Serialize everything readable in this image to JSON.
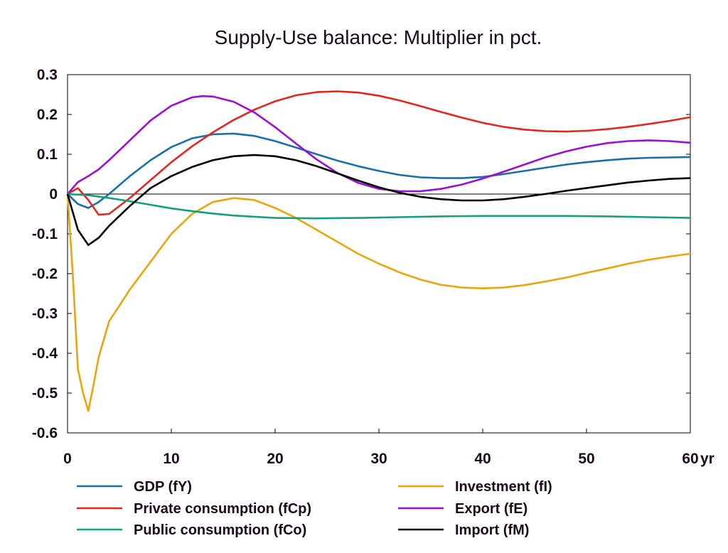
{
  "chart_data": {
    "type": "line",
    "title": "Supply-Use balance: Multiplier in pct.",
    "xlabel": "",
    "ylabel": "",
    "x_unit_label": "yr",
    "xlim": [
      0,
      60
    ],
    "ylim": [
      -0.6,
      0.3
    ],
    "x_ticks": [
      0,
      10,
      20,
      30,
      40,
      50,
      60
    ],
    "x_tick_labels": [
      "0",
      "10",
      "20",
      "30",
      "40",
      "50",
      "60"
    ],
    "y_ticks": [
      0.3,
      0.2,
      0.1,
      0,
      -0.1,
      -0.2,
      -0.3,
      -0.4,
      -0.5,
      -0.6
    ],
    "y_tick_labels": [
      "0.3",
      "0.2",
      "0.1",
      "0",
      "-0.1",
      "-0.2",
      "-0.3",
      "-0.4",
      "-0.5",
      "-0.6"
    ],
    "grid": false,
    "zero_line": true,
    "legend_position": "bottom",
    "series": [
      {
        "name": "GDP (fY)",
        "color": "#1a6fa8",
        "x": [
          0,
          1,
          2,
          3,
          4,
          6,
          8,
          10,
          12,
          14,
          16,
          18,
          20,
          22,
          24,
          26,
          28,
          30,
          32,
          34,
          36,
          38,
          40,
          42,
          44,
          46,
          48,
          50,
          52,
          54,
          56,
          58,
          60
        ],
        "y": [
          0,
          -0.025,
          -0.035,
          -0.02,
          0.0,
          0.045,
          0.085,
          0.118,
          0.14,
          0.15,
          0.152,
          0.146,
          0.133,
          0.117,
          0.1,
          0.084,
          0.07,
          0.058,
          0.048,
          0.042,
          0.04,
          0.04,
          0.043,
          0.05,
          0.058,
          0.066,
          0.074,
          0.08,
          0.085,
          0.089,
          0.091,
          0.092,
          0.093
        ]
      },
      {
        "name": "Investment (fI)",
        "color": "#e8a50f",
        "x": [
          0,
          0.5,
          1,
          1.5,
          2,
          2.5,
          3,
          4,
          6,
          8,
          10,
          12,
          14,
          16,
          18,
          20,
          22,
          24,
          26,
          28,
          30,
          32,
          34,
          36,
          38,
          40,
          42,
          44,
          46,
          48,
          50,
          52,
          54,
          56,
          58,
          60
        ],
        "y": [
          0,
          -0.2,
          -0.44,
          -0.5,
          -0.545,
          -0.48,
          -0.41,
          -0.32,
          -0.24,
          -0.17,
          -0.1,
          -0.05,
          -0.02,
          -0.01,
          -0.015,
          -0.035,
          -0.06,
          -0.09,
          -0.12,
          -0.15,
          -0.175,
          -0.197,
          -0.215,
          -0.228,
          -0.235,
          -0.237,
          -0.235,
          -0.229,
          -0.22,
          -0.21,
          -0.198,
          -0.187,
          -0.175,
          -0.165,
          -0.157,
          -0.15
        ]
      },
      {
        "name": "Private consumption (fCp)",
        "color": "#e02820",
        "x": [
          0,
          1,
          2,
          3,
          4,
          6,
          8,
          10,
          12,
          14,
          16,
          18,
          20,
          22,
          24,
          26,
          28,
          30,
          32,
          34,
          36,
          38,
          40,
          42,
          44,
          46,
          48,
          50,
          52,
          54,
          56,
          58,
          60
        ],
        "y": [
          0,
          0.015,
          -0.015,
          -0.052,
          -0.05,
          -0.01,
          0.035,
          0.08,
          0.12,
          0.155,
          0.186,
          0.212,
          0.233,
          0.248,
          0.256,
          0.258,
          0.255,
          0.247,
          0.235,
          0.221,
          0.206,
          0.192,
          0.179,
          0.169,
          0.162,
          0.158,
          0.157,
          0.159,
          0.163,
          0.169,
          0.176,
          0.184,
          0.193
        ]
      },
      {
        "name": "Export (fE)",
        "color": "#9b10d0",
        "x": [
          0,
          1,
          2,
          3,
          4,
          6,
          8,
          10,
          12,
          13,
          14,
          16,
          18,
          20,
          22,
          24,
          26,
          28,
          30,
          32,
          34,
          36,
          38,
          40,
          42,
          44,
          46,
          48,
          50,
          52,
          54,
          56,
          58,
          60
        ],
        "y": [
          0,
          0.03,
          0.045,
          0.062,
          0.085,
          0.135,
          0.185,
          0.222,
          0.243,
          0.246,
          0.245,
          0.232,
          0.205,
          0.168,
          0.127,
          0.087,
          0.053,
          0.028,
          0.013,
          0.007,
          0.007,
          0.013,
          0.024,
          0.039,
          0.056,
          0.074,
          0.092,
          0.107,
          0.119,
          0.128,
          0.133,
          0.135,
          0.133,
          0.129
        ]
      },
      {
        "name": "Public consumption (fCo)",
        "color": "#14a07c",
        "x": [
          0,
          2,
          4,
          6,
          8,
          10,
          12,
          14,
          16,
          18,
          20,
          24,
          28,
          32,
          36,
          40,
          44,
          48,
          52,
          56,
          60
        ],
        "y": [
          0,
          -0.003,
          -0.01,
          -0.018,
          -0.027,
          -0.036,
          -0.043,
          -0.049,
          -0.054,
          -0.057,
          -0.06,
          -0.061,
          -0.06,
          -0.058,
          -0.056,
          -0.055,
          -0.055,
          -0.055,
          -0.056,
          -0.058,
          -0.06
        ]
      },
      {
        "name": "Import (fM)",
        "color": "#000000",
        "x": [
          0,
          1,
          2,
          3,
          4,
          6,
          8,
          10,
          12,
          14,
          16,
          18,
          20,
          22,
          24,
          26,
          28,
          30,
          32,
          34,
          36,
          38,
          40,
          42,
          44,
          46,
          48,
          50,
          52,
          54,
          56,
          58,
          60
        ],
        "y": [
          0,
          -0.09,
          -0.128,
          -0.11,
          -0.08,
          -0.03,
          0.015,
          0.045,
          0.068,
          0.085,
          0.095,
          0.098,
          0.095,
          0.085,
          0.07,
          0.052,
          0.034,
          0.017,
          0.003,
          -0.007,
          -0.013,
          -0.016,
          -0.016,
          -0.013,
          -0.007,
          0.0,
          0.008,
          0.015,
          0.022,
          0.029,
          0.034,
          0.038,
          0.04
        ]
      }
    ],
    "legend_layout": [
      [
        "GDP (fY)",
        "Investment (fI)"
      ],
      [
        "Private consumption (fCp)",
        "Export (fE)"
      ],
      [
        "Public consumption (fCo)",
        "Import (fM)"
      ]
    ]
  }
}
